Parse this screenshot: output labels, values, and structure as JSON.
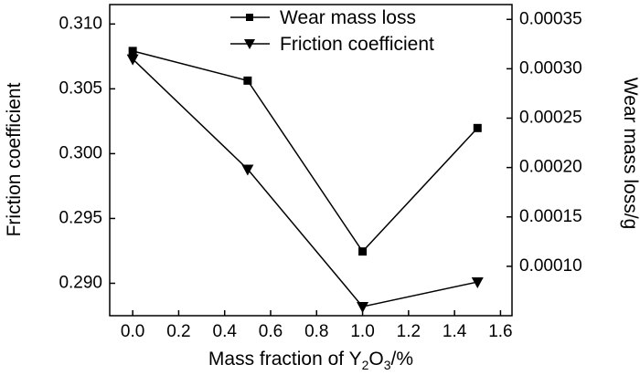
{
  "chart_data": {
    "type": "line",
    "title": "",
    "xlabel": "Mass fraction of Y₂O₃/%",
    "xlabel_parts": {
      "prefix": "Mass fraction of Y",
      "sub1": "2",
      "mid": "O",
      "sub2": "3",
      "suffix": "/%"
    },
    "ylabel_left": "Friction coefficient",
    "ylabel_right": "Wear mass loss/g",
    "x": [
      0.0,
      0.5,
      1.0,
      1.5
    ],
    "xlim": [
      -0.1,
      1.65
    ],
    "ylim_left": [
      0.2875,
      0.3115
    ],
    "ylim_right": [
      5e-05,
      0.000365
    ],
    "x_ticks": [
      "0.0",
      "0.2",
      "0.4",
      "0.6",
      "0.8",
      "1.0",
      "1.2",
      "1.4",
      "1.6"
    ],
    "x_tick_values": [
      0.0,
      0.2,
      0.4,
      0.6,
      0.8,
      1.0,
      1.2,
      1.4,
      1.6
    ],
    "y_left_ticks": [
      "0.290",
      "0.295",
      "0.300",
      "0.305",
      "0.310"
    ],
    "y_left_tick_values": [
      0.29,
      0.295,
      0.3,
      0.305,
      0.31
    ],
    "y_right_ticks": [
      "0.00010",
      "0.00015",
      "0.00020",
      "0.00025",
      "0.00030",
      "0.00035"
    ],
    "y_right_tick_values": [
      0.0001,
      0.00015,
      0.0002,
      0.00025,
      0.0003,
      0.00035
    ],
    "series": [
      {
        "name": "Wear mass loss",
        "axis": "right",
        "marker": "square",
        "values": [
          0.000318,
          0.000288,
          0.000115,
          0.00024
        ]
      },
      {
        "name": "Friction coefficient",
        "axis": "left",
        "marker": "triangle-down",
        "values": [
          0.3073,
          0.2988,
          0.2882,
          0.2901
        ]
      }
    ],
    "legend": "top-center",
    "grid": false,
    "colors": {
      "line": "#000000",
      "background": "#ffffff"
    }
  }
}
